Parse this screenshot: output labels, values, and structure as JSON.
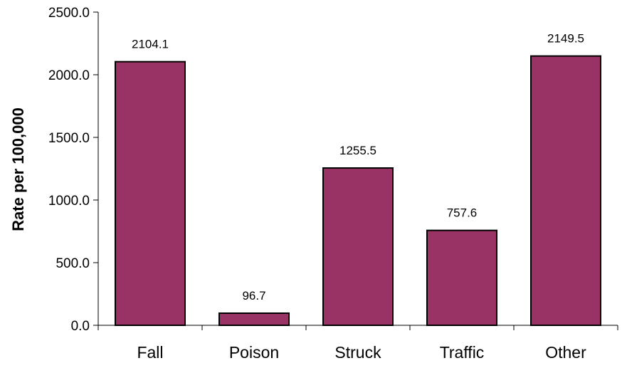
{
  "chart_data": {
    "type": "bar",
    "title": "",
    "xlabel": "",
    "ylabel": "Rate per 100,000",
    "categories": [
      "Fall",
      "Poison",
      "Struck",
      "Traffic",
      "Other"
    ],
    "values": [
      2104.1,
      96.7,
      1255.5,
      757.6,
      2149.5
    ],
    "data_labels": [
      "2104.1",
      "96.7",
      "1255.5",
      "757.6",
      "2149.5"
    ],
    "ylim": [
      0,
      2500
    ],
    "yticks": [
      0,
      500,
      1000,
      1500,
      2000,
      2500
    ],
    "ytick_labels": [
      "0.0",
      "500.0",
      "1000.0",
      "1500.0",
      "2000.0",
      "2500.0"
    ],
    "grid": false,
    "legend": "none",
    "colors": {
      "bar_fill": "#993366",
      "bar_stroke": "#000000",
      "axis": "#000000"
    }
  }
}
